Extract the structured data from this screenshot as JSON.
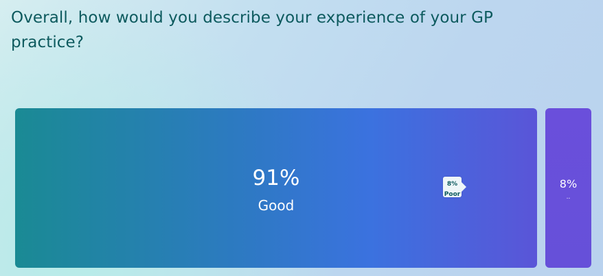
{
  "question": {
    "title": "Overall, how would you describe your experience of your GP practice?"
  },
  "chart_data": {
    "type": "bar",
    "orientation": "horizontal-stacked",
    "title": "Overall, how would you describe your experience of your GP practice?",
    "categories": [
      "Good",
      "Poor"
    ],
    "values": [
      91,
      8
    ],
    "value_labels": [
      "91%",
      "8%"
    ],
    "secondary_label": "..",
    "tooltip": {
      "value_label": "8%",
      "category": "Poor"
    },
    "colors": {
      "good_start": "#1a8a94",
      "good_mid": "#3b72df",
      "good_end": "#5a55d8",
      "poor": "#6650d9",
      "tooltip_bg": "#eef6f8",
      "tooltip_text": "#0d5a5e"
    }
  }
}
